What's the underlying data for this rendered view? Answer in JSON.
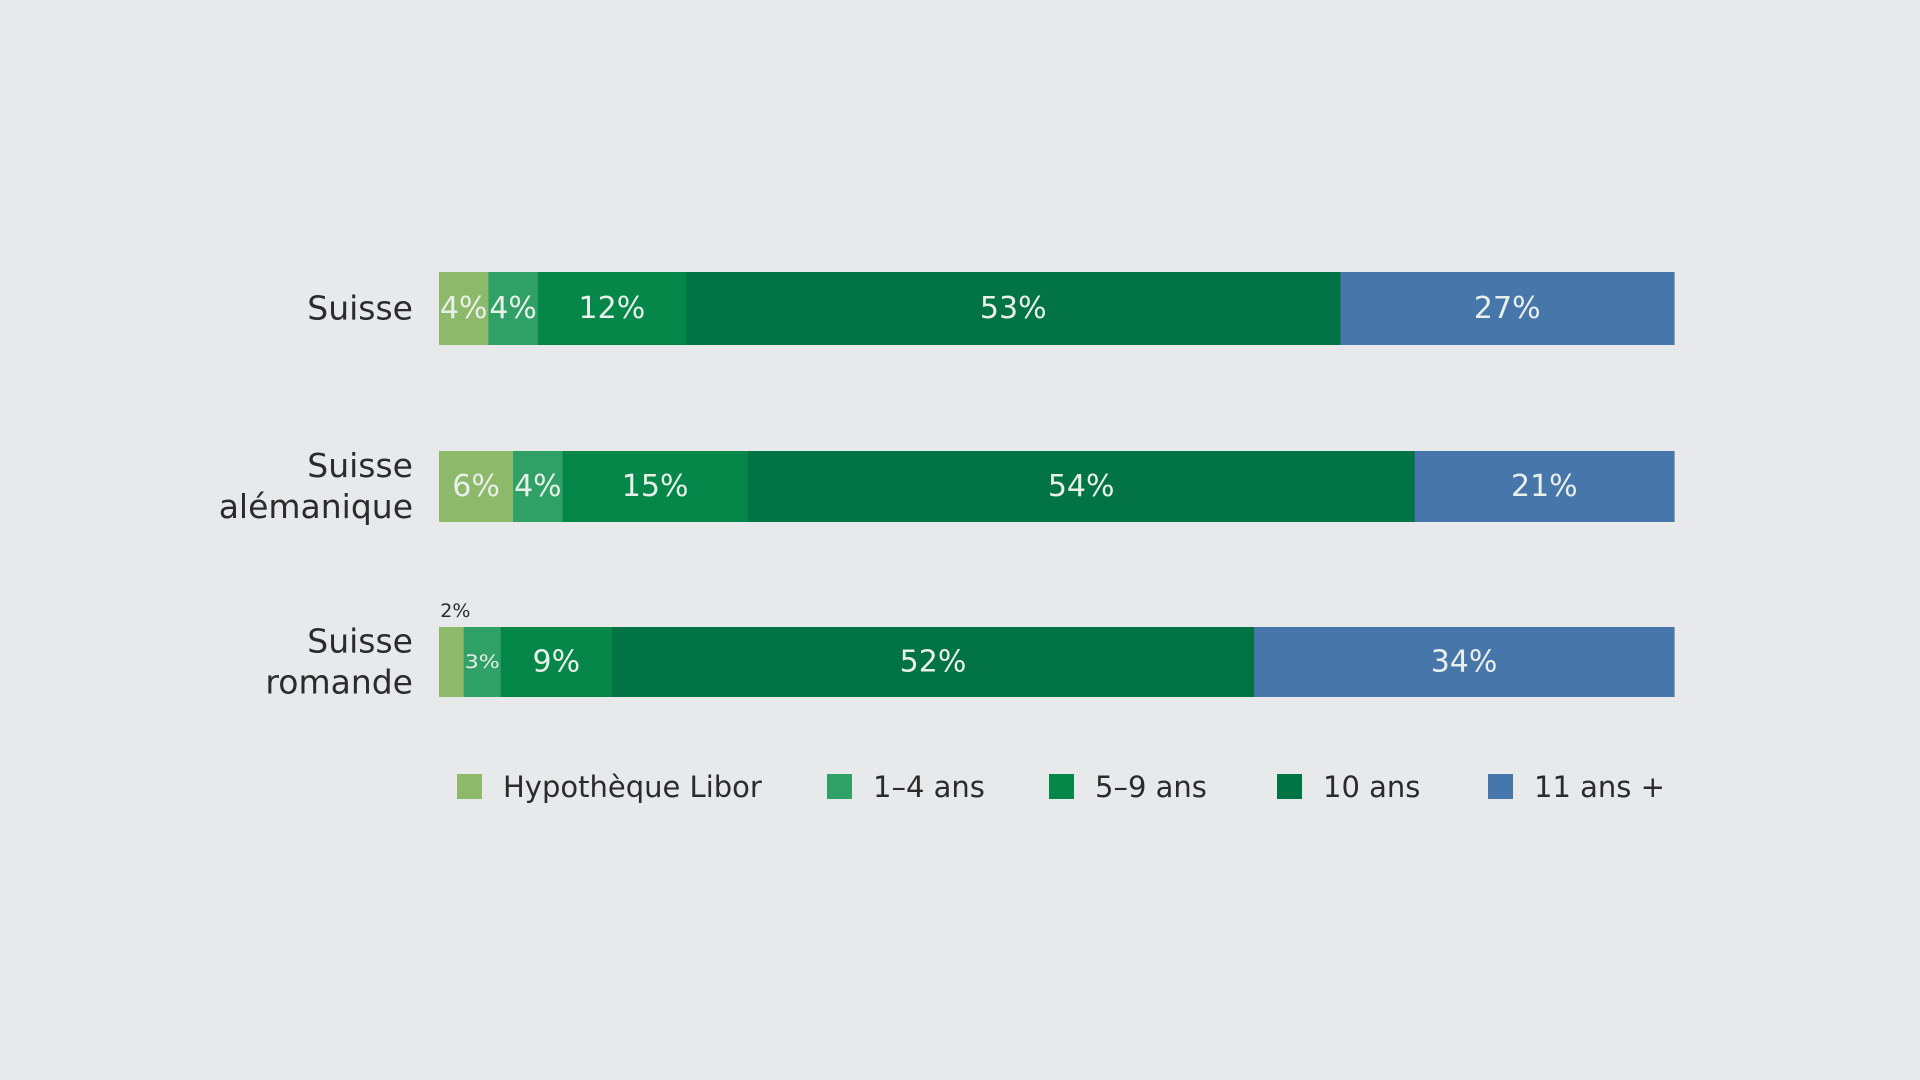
{
  "chart_data": {
    "type": "bar",
    "orientation": "horizontal",
    "stacked": true,
    "title": "",
    "xlabel": "",
    "ylabel": "",
    "xlim": [
      0,
      100
    ],
    "grid": false,
    "legend_position": "bottom",
    "categories": [
      [
        "Suisse"
      ],
      [
        "Suisse",
        "alémanique"
      ],
      [
        "Suisse",
        "romande"
      ]
    ],
    "series": [
      {
        "name": "Hypothèque Libor",
        "color": "#8db96a",
        "values": [
          4,
          6,
          2
        ],
        "labels": [
          "4%",
          "6%",
          "2%"
        ]
      },
      {
        "name": "1–4 ans",
        "color": "#2fa066",
        "values": [
          4,
          4,
          3
        ],
        "labels": [
          "4%",
          "4%",
          "3%"
        ]
      },
      {
        "name": "5–9 ans",
        "color": "#05874a",
        "values": [
          12,
          15,
          9
        ],
        "labels": [
          "12%",
          "15%",
          "9%"
        ]
      },
      {
        "name": "10 ans",
        "color": "#017345",
        "values": [
          53,
          54,
          52
        ],
        "labels": [
          "53%",
          "54%",
          "52%"
        ]
      },
      {
        "name": "11 ans +",
        "color": "#4676aa",
        "values": [
          27,
          21,
          34
        ],
        "labels": [
          "27%",
          "21%",
          "34%"
        ]
      }
    ]
  }
}
